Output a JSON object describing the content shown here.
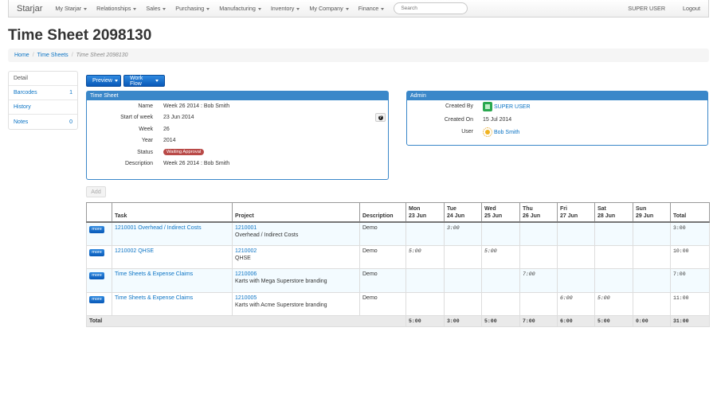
{
  "navbar": {
    "brand": "Starjar",
    "menus": [
      "My Starjar",
      "Relationships",
      "Sales",
      "Purchasing",
      "Manufacturing",
      "Inventory",
      "My Company",
      "Finance"
    ],
    "search_placeholder": "Search",
    "user": "SUPER USER",
    "logout": "Logout"
  },
  "page": {
    "title": "Time Sheet 2098130"
  },
  "breadcrumb": {
    "home": "Home",
    "section": "Time Sheets",
    "current": "Time Sheet 2098130"
  },
  "sidenav": [
    {
      "label": "Detail",
      "count": ""
    },
    {
      "label": "Barcodes",
      "count": "1"
    },
    {
      "label": "History",
      "count": ""
    },
    {
      "label": "Notes",
      "count": "0"
    }
  ],
  "actions": {
    "preview": "Preview",
    "workflow": "Work Flow",
    "add": "Add"
  },
  "timesheet_panel": {
    "heading": "Time Sheet",
    "fields": {
      "name": {
        "label": "Name",
        "value": "Week 26 2014 : Bob Smith"
      },
      "start": {
        "label": "Start of week",
        "value": "23 Jun 2014"
      },
      "week": {
        "label": "Week",
        "value": "26"
      },
      "year": {
        "label": "Year",
        "value": "2014"
      },
      "status": {
        "label": "Status",
        "value": "Waiting Approval"
      },
      "description": {
        "label": "Description",
        "value": "Week 26 2014 : Bob Smith"
      }
    },
    "help_icon": "help-icon"
  },
  "admin_panel": {
    "heading": "Admin",
    "created_by": {
      "label": "Created By",
      "value": "SUPER USER"
    },
    "created_on": {
      "label": "Created On",
      "value": "15 Jul 2014"
    },
    "user": {
      "label": "User",
      "value": "Bob Smith"
    }
  },
  "table": {
    "headers": {
      "task": "Task",
      "project": "Project",
      "description": "Description",
      "mon": "Mon",
      "mon_date": "23 Jun",
      "tue": "Tue",
      "tue_date": "24 Jun",
      "wed": "Wed",
      "wed_date": "25 Jun",
      "thu": "Thu",
      "thu_date": "26 Jun",
      "fri": "Fri",
      "fri_date": "27 Jun",
      "sat": "Sat",
      "sat_date": "28 Jun",
      "sun": "Sun",
      "sun_date": "29 Jun",
      "total": "Total"
    },
    "more_label": "more",
    "rows": [
      {
        "task": "1210001 Overhead / Indirect Costs",
        "project_code": "1210001",
        "project_name": "Overhead / Indirect Costs",
        "description": "Demo",
        "mon": "",
        "tue": "3:00",
        "wed": "",
        "thu": "",
        "fri": "",
        "sat": "",
        "sun": "",
        "total": "3:00"
      },
      {
        "task": "1210002 QHSE",
        "project_code": "1210002",
        "project_name": "QHSE",
        "description": "Demo",
        "mon": "5:00",
        "tue": "",
        "wed": "5:00",
        "thu": "",
        "fri": "",
        "sat": "",
        "sun": "",
        "total": "10:00"
      },
      {
        "task": "Time Sheets & Expense Claims",
        "project_code": "1210006",
        "project_name": "Karts with Mega Superstore branding",
        "description": "Demo",
        "mon": "",
        "tue": "",
        "wed": "",
        "thu": "7:00",
        "fri": "",
        "sat": "",
        "sun": "",
        "total": "7:00"
      },
      {
        "task": "Time Sheets & Expense Claims",
        "project_code": "1210005",
        "project_name": "Karts with Acme Superstore branding",
        "description": "Demo",
        "mon": "",
        "tue": "",
        "wed": "",
        "thu": "",
        "fri": "6:00",
        "sat": "5:00",
        "sun": "",
        "total": "11:00"
      }
    ],
    "footer": {
      "label": "Total",
      "mon": "5:00",
      "tue": "3:00",
      "wed": "5:00",
      "thu": "7:00",
      "fri": "6:00",
      "sat": "5:00",
      "sun": "0:00",
      "total": "31:00"
    }
  }
}
